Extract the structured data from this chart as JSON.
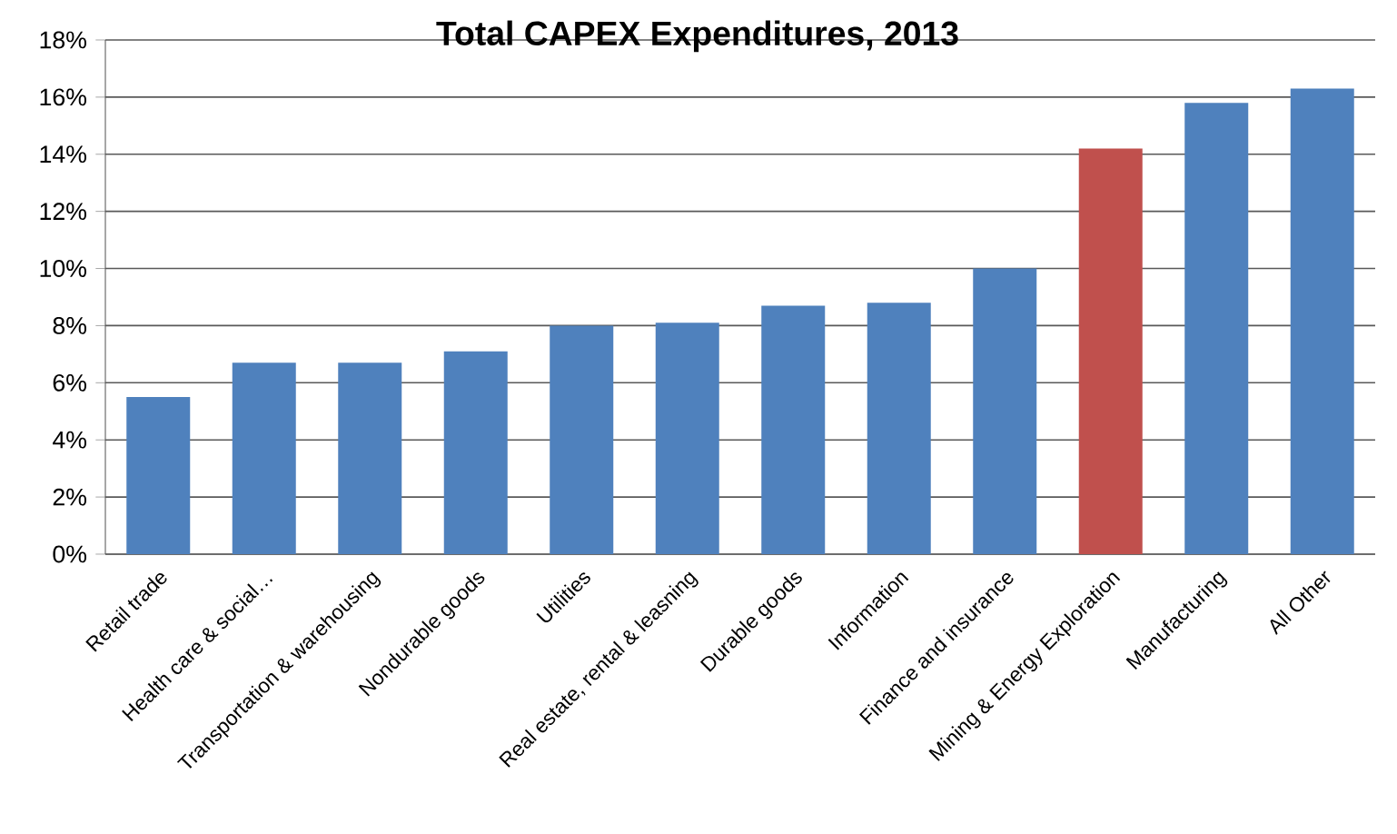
{
  "chart_data": {
    "type": "bar",
    "title": "Total CAPEX Expenditures, 2013",
    "categories": [
      "Retail trade",
      "Health care & social…",
      "Transportation & warehousing",
      "Nondurable goods",
      "Utilities",
      "Real estate, rental & leasning",
      "Durable goods",
      "Information",
      "Finance and insurance",
      "Mining & Energy Exploration",
      "Manufacturing",
      "All Other"
    ],
    "values": [
      5.5,
      6.7,
      6.7,
      7.1,
      8.0,
      8.1,
      8.7,
      8.8,
      10.0,
      14.2,
      15.8,
      16.3
    ],
    "colors": [
      "#4f81bd",
      "#4f81bd",
      "#4f81bd",
      "#4f81bd",
      "#4f81bd",
      "#4f81bd",
      "#4f81bd",
      "#4f81bd",
      "#4f81bd",
      "#c0504d",
      "#4f81bd",
      "#4f81bd"
    ],
    "ylim": [
      0,
      18
    ],
    "yticks": [
      {
        "value": 0,
        "label": "0%"
      },
      {
        "value": 2,
        "label": "2%"
      },
      {
        "value": 4,
        "label": "4%"
      },
      {
        "value": 6,
        "label": "6%"
      },
      {
        "value": 8,
        "label": "8%"
      },
      {
        "value": 10,
        "label": "10%"
      },
      {
        "value": 12,
        "label": "12%"
      },
      {
        "value": 14,
        "label": "14%"
      },
      {
        "value": 16,
        "label": "16%"
      },
      {
        "value": 18,
        "label": "18%"
      }
    ],
    "grid": "y"
  }
}
